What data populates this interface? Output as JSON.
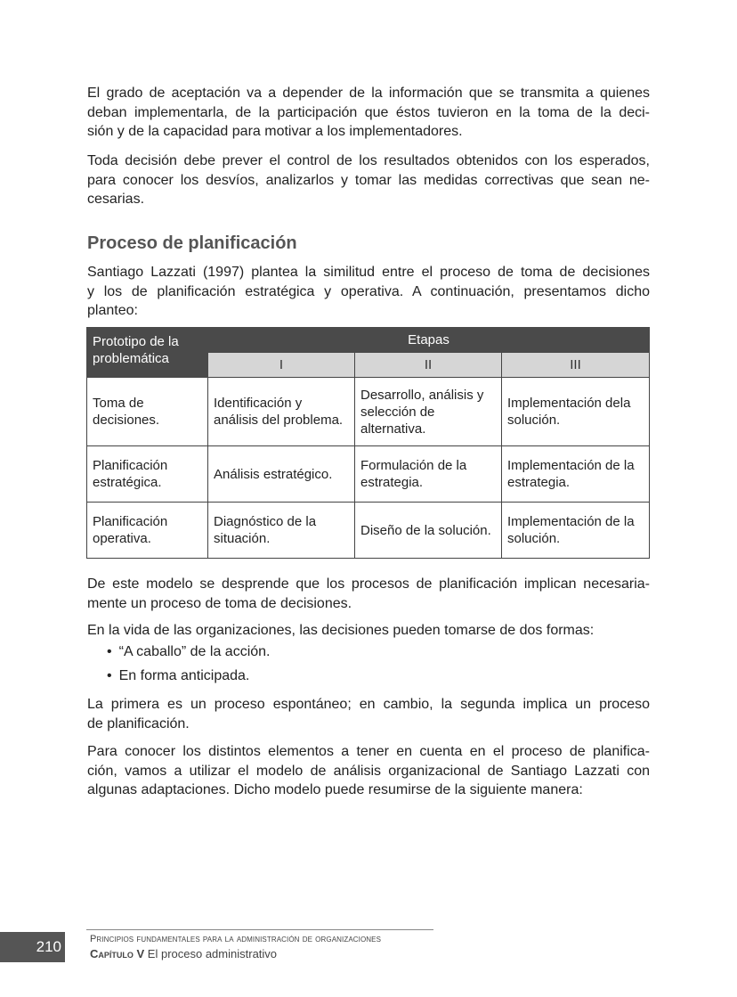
{
  "paragraphs_top": [
    [
      "El grado de aceptación va a depender de la información que se transmita a quienes",
      "deban implementarla, de la participación que éstos tuvieron en la toma de la deci-",
      "sión y de la capacidad para motivar a los implementadores."
    ],
    [
      "Toda decisión debe prever el control de los resultados obtenidos con los esperados,",
      "para conocer los desvíos, analizarlos y tomar las medidas correctivas que sean ne-",
      "cesarias."
    ]
  ],
  "heading": "Proceso de planificación",
  "intro": [
    "Santiago Lazzati (1997) plantea la similitud entre el proceso de toma de decisiones",
    "y los de planificación estratégica y operativa. A continuación, presentamos dicho",
    "planteo:"
  ],
  "table": {
    "corner": "Prototipo de la problemática",
    "group_header": "Etapas",
    "stages": [
      "I",
      "II",
      "III"
    ],
    "rows": [
      {
        "label": "Toma de decisiones.",
        "cells": [
          "Identificación y análisis del problema.",
          "Desarrollo, análisis y selección de alternativa.",
          "Implementación dela solución."
        ]
      },
      {
        "label": "Planificación estratégica.",
        "cells": [
          "Análisis estratégico.",
          "Formulación de la estrategia.",
          "Implementación de la estrategia."
        ]
      },
      {
        "label": "Planificación operativa.",
        "cells": [
          "Diagnóstico de la situación.",
          "Diseño de la solución.",
          "Implementación de la solución."
        ]
      }
    ]
  },
  "p_after1": [
    "De este modelo se desprende que los procesos de planificación implican necesaria-",
    "mente un proceso de toma de decisiones."
  ],
  "p_after2": [
    "En la vida de las organizaciones, las decisiones pueden tomarse de dos formas:"
  ],
  "bullets": [
    "“A caballo” de la acción.",
    "En forma anticipada."
  ],
  "p_after3": [
    "La primera es un proceso espontáneo; en cambio, la segunda implica un proceso",
    "de planificación."
  ],
  "p_after4": [
    "Para conocer los distintos elementos a tener en cuenta en el proceso de planifica-",
    "ción, vamos a utilizar el modelo de análisis organizacional de Santiago Lazzati con",
    "algunas adaptaciones. Dicho modelo puede resumirse de la siguiente manera:"
  ],
  "footer": {
    "page_number": "210",
    "book_title": "Principios fundamentales para la administración de organizaciones",
    "chapter_label": "Capítulo V",
    "chapter_title": "El proceso administrativo"
  }
}
